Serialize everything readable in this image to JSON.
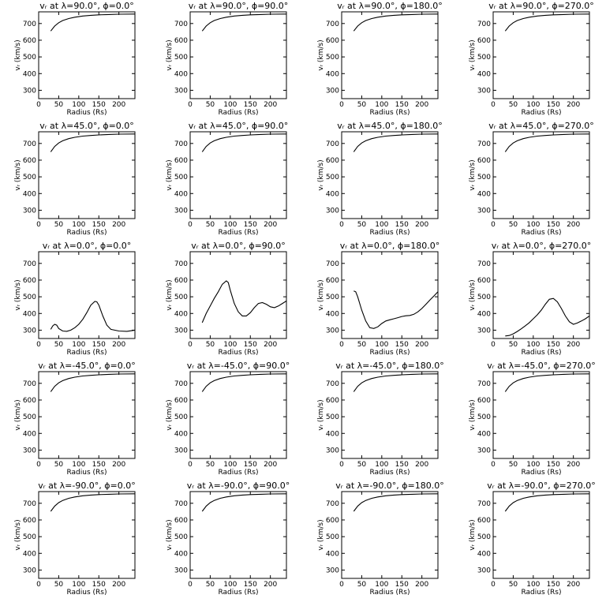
{
  "figure": {
    "rows": 5,
    "cols": 4
  },
  "chart_data": [
    {
      "type": "line",
      "title": "vᵣ at λ=90.0°, ϕ=0.0°",
      "xlabel": "Radius (Rs)",
      "ylabel": "vᵣ (km/s)",
      "xlim": [
        0,
        240
      ],
      "ylim": [
        250,
        770
      ],
      "xticks": [
        0,
        50,
        100,
        150,
        200
      ],
      "yticks": [
        300,
        400,
        500,
        600,
        700
      ],
      "series": [
        {
          "x": [
            30,
            40,
            50,
            60,
            75,
            90,
            110,
            130,
            150,
            175,
            200,
            240
          ],
          "y": [
            655,
            685,
            705,
            718,
            730,
            738,
            745,
            749,
            752,
            754,
            756,
            757
          ]
        }
      ]
    },
    {
      "type": "line",
      "title": "vᵣ at λ=90.0°, ϕ=90.0°",
      "xlabel": "Radius (Rs)",
      "ylabel": "vᵣ (km/s)",
      "xlim": [
        0,
        240
      ],
      "ylim": [
        250,
        770
      ],
      "xticks": [
        0,
        50,
        100,
        150,
        200
      ],
      "yticks": [
        300,
        400,
        500,
        600,
        700
      ],
      "series": [
        {
          "x": [
            30,
            40,
            50,
            60,
            75,
            90,
            110,
            130,
            150,
            175,
            200,
            240
          ],
          "y": [
            655,
            685,
            705,
            718,
            730,
            738,
            745,
            749,
            752,
            754,
            756,
            757
          ]
        }
      ]
    },
    {
      "type": "line",
      "title": "vᵣ at λ=90.0°, ϕ=180.0°",
      "xlabel": "Radius (Rs)",
      "ylabel": "vᵣ (km/s)",
      "xlim": [
        0,
        240
      ],
      "ylim": [
        250,
        770
      ],
      "xticks": [
        0,
        50,
        100,
        150,
        200
      ],
      "yticks": [
        300,
        400,
        500,
        600,
        700
      ],
      "series": [
        {
          "x": [
            30,
            40,
            50,
            60,
            75,
            90,
            110,
            130,
            150,
            175,
            200,
            240
          ],
          "y": [
            655,
            685,
            705,
            718,
            730,
            738,
            745,
            749,
            752,
            754,
            756,
            757
          ]
        }
      ]
    },
    {
      "type": "line",
      "title": "vᵣ at λ=90.0°, ϕ=270.0°",
      "xlabel": "Radius (Rs)",
      "ylabel": "vᵣ (km/s)",
      "xlim": [
        0,
        240
      ],
      "ylim": [
        250,
        770
      ],
      "xticks": [
        0,
        50,
        100,
        150,
        200
      ],
      "yticks": [
        300,
        400,
        500,
        600,
        700
      ],
      "series": [
        {
          "x": [
            30,
            40,
            50,
            60,
            75,
            90,
            110,
            130,
            150,
            175,
            200,
            240
          ],
          "y": [
            655,
            685,
            705,
            718,
            730,
            738,
            745,
            749,
            752,
            754,
            756,
            757
          ]
        }
      ]
    },
    {
      "type": "line",
      "title": "vᵣ at λ=45.0°, ϕ=0.0°",
      "xlabel": "Radius (Rs)",
      "ylabel": "vᵣ (km/s)",
      "xlim": [
        0,
        240
      ],
      "ylim": [
        250,
        770
      ],
      "xticks": [
        0,
        50,
        100,
        150,
        200
      ],
      "yticks": [
        300,
        400,
        500,
        600,
        700
      ],
      "series": [
        {
          "x": [
            30,
            40,
            50,
            60,
            75,
            90,
            110,
            130,
            150,
            175,
            200,
            240
          ],
          "y": [
            650,
            682,
            703,
            716,
            729,
            737,
            744,
            748,
            751,
            754,
            756,
            757
          ]
        }
      ]
    },
    {
      "type": "line",
      "title": "vᵣ at λ=45.0°, ϕ=90.0°",
      "xlabel": "Radius (Rs)",
      "ylabel": "vᵣ (km/s)",
      "xlim": [
        0,
        240
      ],
      "ylim": [
        250,
        770
      ],
      "xticks": [
        0,
        50,
        100,
        150,
        200
      ],
      "yticks": [
        300,
        400,
        500,
        600,
        700
      ],
      "series": [
        {
          "x": [
            30,
            40,
            50,
            60,
            75,
            90,
            110,
            130,
            150,
            175,
            200,
            240
          ],
          "y": [
            650,
            682,
            703,
            716,
            729,
            737,
            744,
            748,
            751,
            754,
            756,
            757
          ]
        }
      ]
    },
    {
      "type": "line",
      "title": "vᵣ at λ=45.0°, ϕ=180.0°",
      "xlabel": "Radius (Rs)",
      "ylabel": "vᵣ (km/s)",
      "xlim": [
        0,
        240
      ],
      "ylim": [
        250,
        770
      ],
      "xticks": [
        0,
        50,
        100,
        150,
        200
      ],
      "yticks": [
        300,
        400,
        500,
        600,
        700
      ],
      "series": [
        {
          "x": [
            30,
            40,
            50,
            60,
            75,
            90,
            110,
            130,
            150,
            175,
            200,
            240
          ],
          "y": [
            650,
            682,
            703,
            716,
            729,
            737,
            744,
            748,
            751,
            754,
            756,
            757
          ]
        }
      ]
    },
    {
      "type": "line",
      "title": "vᵣ at λ=45.0°, ϕ=270.0°",
      "xlabel": "Radius (Rs)",
      "ylabel": "vᵣ (km/s)",
      "xlim": [
        0,
        240
      ],
      "ylim": [
        250,
        770
      ],
      "xticks": [
        0,
        50,
        100,
        150,
        200
      ],
      "yticks": [
        300,
        400,
        500,
        600,
        700
      ],
      "series": [
        {
          "x": [
            30,
            40,
            50,
            60,
            75,
            90,
            110,
            130,
            150,
            175,
            200,
            240
          ],
          "y": [
            650,
            682,
            703,
            716,
            729,
            737,
            744,
            748,
            751,
            754,
            756,
            757
          ]
        }
      ]
    },
    {
      "type": "line",
      "title": "vᵣ at λ=0.0°, ϕ=0.0°",
      "xlabel": "Radius (Rs)",
      "ylabel": "vᵣ (km/s)",
      "xlim": [
        0,
        240
      ],
      "ylim": [
        250,
        770
      ],
      "xticks": [
        0,
        50,
        100,
        150,
        200
      ],
      "yticks": [
        300,
        400,
        500,
        600,
        700
      ],
      "series": [
        {
          "x": [
            30,
            35,
            40,
            45,
            50,
            60,
            70,
            80,
            90,
            100,
            110,
            120,
            130,
            140,
            145,
            150,
            160,
            170,
            180,
            200,
            220,
            240
          ],
          "y": [
            305,
            325,
            335,
            330,
            310,
            295,
            293,
            300,
            315,
            335,
            365,
            405,
            450,
            472,
            470,
            450,
            385,
            330,
            305,
            295,
            293,
            300
          ]
        }
      ]
    },
    {
      "type": "line",
      "title": "vᵣ at λ=0.0°, ϕ=90.0°",
      "xlabel": "Radius (Rs)",
      "ylabel": "vᵣ (km/s)",
      "xlim": [
        0,
        240
      ],
      "ylim": [
        250,
        770
      ],
      "xticks": [
        0,
        50,
        100,
        150,
        200
      ],
      "yticks": [
        300,
        400,
        500,
        600,
        700
      ],
      "series": [
        {
          "x": [
            30,
            40,
            50,
            60,
            70,
            80,
            90,
            95,
            100,
            110,
            120,
            130,
            140,
            150,
            160,
            170,
            180,
            190,
            200,
            210,
            220,
            230,
            240
          ],
          "y": [
            345,
            400,
            445,
            490,
            530,
            575,
            595,
            585,
            540,
            460,
            410,
            385,
            385,
            405,
            435,
            460,
            465,
            455,
            440,
            435,
            445,
            460,
            475
          ]
        }
      ]
    },
    {
      "type": "line",
      "title": "vᵣ at λ=0.0°, ϕ=180.0°",
      "xlabel": "Radius (Rs)",
      "ylabel": "vᵣ (km/s)",
      "xlim": [
        0,
        240
      ],
      "ylim": [
        250,
        770
      ],
      "xticks": [
        0,
        50,
        100,
        150,
        200
      ],
      "yticks": [
        300,
        400,
        500,
        600,
        700
      ],
      "series": [
        {
          "x": [
            30,
            35,
            40,
            50,
            60,
            70,
            80,
            90,
            100,
            110,
            120,
            130,
            140,
            150,
            160,
            170,
            180,
            190,
            200,
            210,
            220,
            230,
            240
          ],
          "y": [
            535,
            530,
            500,
            420,
            355,
            315,
            310,
            320,
            340,
            355,
            362,
            368,
            375,
            382,
            386,
            388,
            395,
            410,
            430,
            455,
            480,
            505,
            530
          ]
        }
      ]
    },
    {
      "type": "line",
      "title": "vᵣ at λ=0.0°, ϕ=270.0°",
      "xlabel": "Radius (Rs)",
      "ylabel": "vᵣ (km/s)",
      "xlim": [
        0,
        240
      ],
      "ylim": [
        250,
        770
      ],
      "xticks": [
        0,
        50,
        100,
        150,
        200
      ],
      "yticks": [
        300,
        400,
        500,
        600,
        700
      ],
      "series": [
        {
          "x": [
            30,
            40,
            50,
            60,
            70,
            80,
            90,
            100,
            110,
            120,
            130,
            140,
            150,
            160,
            170,
            180,
            190,
            200,
            210,
            220,
            230,
            240
          ],
          "y": [
            265,
            268,
            278,
            292,
            308,
            326,
            345,
            368,
            392,
            420,
            455,
            485,
            490,
            470,
            430,
            385,
            350,
            335,
            343,
            355,
            368,
            385
          ]
        }
      ]
    },
    {
      "type": "line",
      "title": "vᵣ at λ=-45.0°, ϕ=0.0°",
      "xlabel": "Radius (Rs)",
      "ylabel": "vᵣ (km/s)",
      "xlim": [
        0,
        240
      ],
      "ylim": [
        250,
        770
      ],
      "xticks": [
        0,
        50,
        100,
        150,
        200
      ],
      "yticks": [
        300,
        400,
        500,
        600,
        700
      ],
      "series": [
        {
          "x": [
            30,
            40,
            50,
            60,
            75,
            90,
            110,
            130,
            150,
            175,
            200,
            240
          ],
          "y": [
            650,
            682,
            703,
            716,
            729,
            737,
            744,
            748,
            751,
            754,
            756,
            757
          ]
        }
      ]
    },
    {
      "type": "line",
      "title": "vᵣ at λ=-45.0°, ϕ=90.0°",
      "xlabel": "Radius (Rs)",
      "ylabel": "vᵣ (km/s)",
      "xlim": [
        0,
        240
      ],
      "ylim": [
        250,
        770
      ],
      "xticks": [
        0,
        50,
        100,
        150,
        200
      ],
      "yticks": [
        300,
        400,
        500,
        600,
        700
      ],
      "series": [
        {
          "x": [
            30,
            40,
            50,
            60,
            75,
            90,
            110,
            130,
            150,
            175,
            200,
            240
          ],
          "y": [
            650,
            682,
            703,
            716,
            729,
            737,
            744,
            748,
            751,
            754,
            756,
            757
          ]
        }
      ]
    },
    {
      "type": "line",
      "title": "vᵣ at λ=-45.0°, ϕ=180.0°",
      "xlabel": "Radius (Rs)",
      "ylabel": "vᵣ (km/s)",
      "xlim": [
        0,
        240
      ],
      "ylim": [
        250,
        770
      ],
      "xticks": [
        0,
        50,
        100,
        150,
        200
      ],
      "yticks": [
        300,
        400,
        500,
        600,
        700
      ],
      "series": [
        {
          "x": [
            30,
            40,
            50,
            60,
            75,
            90,
            110,
            130,
            150,
            175,
            200,
            240
          ],
          "y": [
            650,
            682,
            703,
            716,
            729,
            737,
            744,
            748,
            751,
            754,
            756,
            757
          ]
        }
      ]
    },
    {
      "type": "line",
      "title": "vᵣ at λ=-45.0°, ϕ=270.0°",
      "xlabel": "Radius (Rs)",
      "ylabel": "vᵣ (km/s)",
      "xlim": [
        0,
        240
      ],
      "ylim": [
        250,
        770
      ],
      "xticks": [
        0,
        50,
        100,
        150,
        200
      ],
      "yticks": [
        300,
        400,
        500,
        600,
        700
      ],
      "series": [
        {
          "x": [
            30,
            40,
            50,
            60,
            75,
            90,
            110,
            130,
            150,
            175,
            200,
            240
          ],
          "y": [
            650,
            682,
            703,
            716,
            729,
            737,
            744,
            748,
            751,
            754,
            756,
            757
          ]
        }
      ]
    },
    {
      "type": "line",
      "title": "vᵣ at λ=-90.0°, ϕ=0.0°",
      "xlabel": "Radius (Rs)",
      "ylabel": "vᵣ (km/s)",
      "xlim": [
        0,
        240
      ],
      "ylim": [
        250,
        770
      ],
      "xticks": [
        0,
        50,
        100,
        150,
        200
      ],
      "yticks": [
        300,
        400,
        500,
        600,
        700
      ],
      "series": [
        {
          "x": [
            30,
            40,
            50,
            60,
            75,
            90,
            110,
            130,
            150,
            175,
            200,
            240
          ],
          "y": [
            652,
            683,
            704,
            717,
            730,
            738,
            745,
            749,
            752,
            754,
            756,
            757
          ]
        }
      ]
    },
    {
      "type": "line",
      "title": "vᵣ at λ=-90.0°, ϕ=90.0°",
      "xlabel": "Radius (Rs)",
      "ylabel": "vᵣ (km/s)",
      "xlim": [
        0,
        240
      ],
      "ylim": [
        250,
        770
      ],
      "xticks": [
        0,
        50,
        100,
        150,
        200
      ],
      "yticks": [
        300,
        400,
        500,
        600,
        700
      ],
      "series": [
        {
          "x": [
            30,
            40,
            50,
            60,
            75,
            90,
            110,
            130,
            150,
            175,
            200,
            240
          ],
          "y": [
            652,
            683,
            704,
            717,
            730,
            738,
            745,
            749,
            752,
            754,
            756,
            757
          ]
        }
      ]
    },
    {
      "type": "line",
      "title": "vᵣ at λ=-90.0°, ϕ=180.0°",
      "xlabel": "Radius (Rs)",
      "ylabel": "vᵣ (km/s)",
      "xlim": [
        0,
        240
      ],
      "ylim": [
        250,
        770
      ],
      "xticks": [
        0,
        50,
        100,
        150,
        200
      ],
      "yticks": [
        300,
        400,
        500,
        600,
        700
      ],
      "series": [
        {
          "x": [
            30,
            40,
            50,
            60,
            75,
            90,
            110,
            130,
            150,
            175,
            200,
            240
          ],
          "y": [
            652,
            683,
            704,
            717,
            730,
            738,
            745,
            749,
            752,
            754,
            756,
            757
          ]
        }
      ]
    },
    {
      "type": "line",
      "title": "vᵣ at λ=-90.0°, ϕ=270.0°",
      "xlabel": "Radius (Rs)",
      "ylabel": "vᵣ (km/s)",
      "xlim": [
        0,
        240
      ],
      "ylim": [
        250,
        770
      ],
      "xticks": [
        0,
        50,
        100,
        150,
        200
      ],
      "yticks": [
        300,
        400,
        500,
        600,
        700
      ],
      "series": [
        {
          "x": [
            30,
            40,
            50,
            60,
            75,
            90,
            110,
            130,
            150,
            175,
            200,
            240
          ],
          "y": [
            652,
            683,
            704,
            717,
            730,
            738,
            745,
            749,
            752,
            754,
            756,
            757
          ]
        }
      ]
    }
  ]
}
